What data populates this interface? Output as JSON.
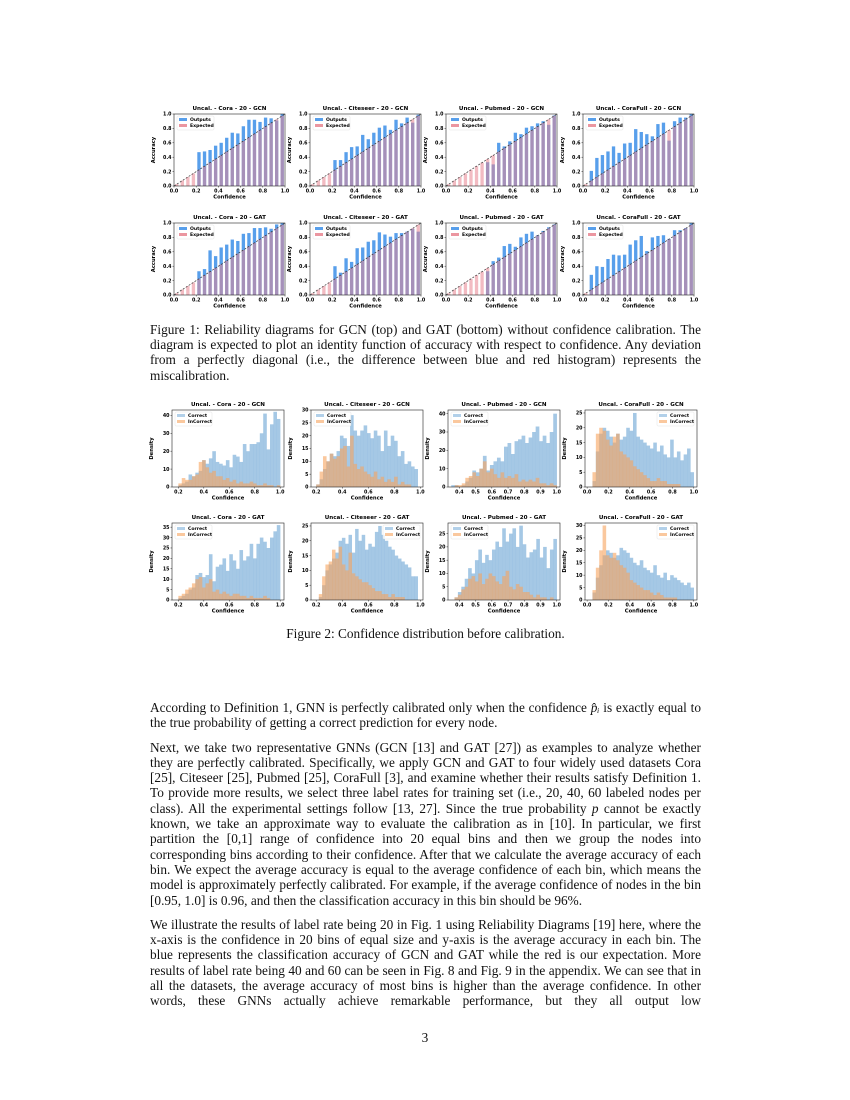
{
  "figure1": {
    "caption": "Figure 1: Reliability diagrams for GCN (top) and GAT (bottom) without confidence calibration. The diagram is expected to plot an identity function of accuracy with respect to confidence. Any deviation from a perfectly diagonal (i.e., the difference between blue and red histogram) represents the miscalibration.",
    "legend": [
      "Outputs",
      "Expected"
    ],
    "colors": {
      "outputs": "#3b8ee8",
      "expected": "#e8848f"
    }
  },
  "figure2": {
    "caption": "Figure 2: Confidence distribution before calibration.",
    "legend": [
      "Correct",
      "InCorrect"
    ],
    "colors": {
      "correct": "#7fb1da",
      "incorrect": "#f6a35e"
    }
  },
  "chart_data": [
    {
      "type": "bar",
      "title": "Uncal. - Cora - 20 - GCN",
      "xlabel": "Confidence",
      "ylabel": "Accuracy",
      "bins": 20,
      "xlim": [
        0,
        1
      ],
      "ylim": [
        0,
        1
      ],
      "xticks": [
        "0.0",
        "0.2",
        "0.4",
        "0.6",
        "0.8",
        "1.0"
      ],
      "yticks": [
        "0.0",
        "0.2",
        "0.4",
        "0.6",
        "0.8",
        "1.0"
      ],
      "first_bin": 4,
      "outputs": [
        0.47,
        0.48,
        0.5,
        0.56,
        0.6,
        0.67,
        0.74,
        0.73,
        0.83,
        0.92,
        0.92,
        0.89,
        0.95,
        0.94,
        0.91,
        1.0
      ],
      "expected": "bin center",
      "legend": "top-left"
    },
    {
      "type": "bar",
      "title": "Uncal. - Citeseer - 20 - GCN",
      "xlabel": "Confidence",
      "ylabel": "Accuracy",
      "bins": 20,
      "xlim": [
        0,
        1
      ],
      "ylim": [
        0,
        1
      ],
      "xticks": [
        "0.0",
        "0.2",
        "0.4",
        "0.6",
        "0.8",
        "1.0"
      ],
      "yticks": [
        "0.0",
        "0.2",
        "0.4",
        "0.6",
        "0.8",
        "1.0"
      ],
      "first_bin": 4,
      "outputs": [
        0.36,
        0.36,
        0.47,
        0.54,
        0.55,
        0.71,
        0.65,
        0.74,
        0.81,
        0.84,
        0.78,
        0.92,
        0.87,
        0.95,
        0.88,
        0.99
      ],
      "expected": "bin center",
      "legend": "top-left"
    },
    {
      "type": "bar",
      "title": "Uncal. - Pubmed - 20 - GCN",
      "xlabel": "Confidence",
      "ylabel": "Accuracy",
      "bins": 20,
      "xlim": [
        0,
        1
      ],
      "ylim": [
        0,
        1
      ],
      "xticks": [
        "0.0",
        "0.2",
        "0.4",
        "0.6",
        "0.8",
        "1.0"
      ],
      "yticks": [
        "0.0",
        "0.2",
        "0.4",
        "0.6",
        "0.8",
        "1.0"
      ],
      "first_bin": 7,
      "outputs": [
        0.33,
        0.3,
        0.6,
        0.55,
        0.62,
        0.74,
        0.72,
        0.81,
        0.83,
        0.87,
        0.9,
        0.85,
        0.98
      ],
      "expected": "bin center",
      "legend": "top-left"
    },
    {
      "type": "bar",
      "title": "Uncal. - CoraFull - 20 - GCN",
      "xlabel": "Confidence",
      "ylabel": "Accuracy",
      "bins": 20,
      "xlim": [
        0,
        1
      ],
      "ylim": [
        0,
        1
      ],
      "xticks": [
        "0.0",
        "0.2",
        "0.4",
        "0.6",
        "0.8",
        "1.0"
      ],
      "yticks": [
        "0.0",
        "0.2",
        "0.4",
        "0.6",
        "0.8",
        "1.0"
      ],
      "first_bin": 1,
      "outputs": [
        0.21,
        0.39,
        0.43,
        0.48,
        0.55,
        0.46,
        0.59,
        0.6,
        0.79,
        0.75,
        0.72,
        0.69,
        0.86,
        0.88,
        0.63,
        0.9,
        0.95,
        0.95,
        1.0
      ],
      "expected": "bin center",
      "legend": "top-left"
    },
    {
      "type": "bar",
      "title": "Uncal. - Cora - 20 - GAT",
      "xlabel": "Confidence",
      "ylabel": "Accuracy",
      "bins": 20,
      "xlim": [
        0,
        1
      ],
      "ylim": [
        0,
        1
      ],
      "xticks": [
        "0.0",
        "0.2",
        "0.4",
        "0.6",
        "0.8",
        "1.0"
      ],
      "yticks": [
        "0.0",
        "0.2",
        "0.4",
        "0.6",
        "0.8",
        "1.0"
      ],
      "first_bin": 4,
      "outputs": [
        0.33,
        0.36,
        0.62,
        0.54,
        0.66,
        0.7,
        0.77,
        0.75,
        0.85,
        0.86,
        0.93,
        0.93,
        0.94,
        0.92,
        0.98,
        1.0
      ],
      "expected": "bin center",
      "legend": "top-left"
    },
    {
      "type": "bar",
      "title": "Uncal. - Citeseer - 20 - GAT",
      "xlabel": "Confidence",
      "ylabel": "Accuracy",
      "bins": 20,
      "xlim": [
        0,
        1
      ],
      "ylim": [
        0,
        1
      ],
      "xticks": [
        "0.0",
        "0.2",
        "0.4",
        "0.6",
        "0.8",
        "1.0"
      ],
      "yticks": [
        "0.0",
        "0.2",
        "0.4",
        "0.6",
        "0.8",
        "1.0"
      ],
      "first_bin": 4,
      "outputs": [
        0.4,
        0.31,
        0.51,
        0.46,
        0.65,
        0.66,
        0.74,
        0.76,
        0.87,
        0.84,
        0.81,
        0.86,
        0.86,
        0.88,
        0.92,
        0.88
      ],
      "expected": "bin center",
      "legend": "top-left"
    },
    {
      "type": "bar",
      "title": "Uncal. - Pubmed - 20 - GAT",
      "xlabel": "Confidence",
      "ylabel": "Accuracy",
      "bins": 20,
      "xlim": [
        0,
        1
      ],
      "ylim": [
        0,
        1
      ],
      "xticks": [
        "0.0",
        "0.2",
        "0.4",
        "0.6",
        "0.8",
        "1.0"
      ],
      "yticks": [
        "0.0",
        "0.2",
        "0.4",
        "0.6",
        "0.8",
        "1.0"
      ],
      "first_bin": 7,
      "outputs": [
        0.33,
        0.47,
        0.52,
        0.68,
        0.71,
        0.67,
        0.8,
        0.85,
        0.88,
        0.83,
        0.89,
        0.94,
        0.98
      ],
      "expected": "bin center",
      "legend": "top-left"
    },
    {
      "type": "bar",
      "title": "Uncal. - CoraFull - 20 - GAT",
      "xlabel": "Confidence",
      "ylabel": "Accuracy",
      "bins": 20,
      "xlim": [
        0,
        1
      ],
      "ylim": [
        0,
        1
      ],
      "xticks": [
        "0.0",
        "0.2",
        "0.4",
        "0.6",
        "0.8",
        "1.0"
      ],
      "yticks": [
        "0.0",
        "0.2",
        "0.4",
        "0.6",
        "0.8",
        "1.0"
      ],
      "first_bin": 1,
      "outputs": [
        0.28,
        0.4,
        0.39,
        0.5,
        0.56,
        0.55,
        0.56,
        0.7,
        0.76,
        0.82,
        0.61,
        0.8,
        0.82,
        0.83,
        0.78,
        0.9,
        0.9,
        0.93,
        1.0
      ],
      "expected": "bin center",
      "legend": "top-left"
    },
    {
      "type": "histogram",
      "title": "Uncal. - Cora - 20 - GCN",
      "xlabel": "Confidence",
      "ylabel": "Density",
      "xlim": [
        0.15,
        1.03
      ],
      "ylim": [
        0,
        43
      ],
      "xticks": [
        0.2,
        0.4,
        0.6,
        0.8,
        1.0
      ],
      "yticks": [
        0,
        10,
        20,
        30,
        40
      ],
      "range": [
        0.2,
        1.0
      ],
      "legend": "top-left",
      "correct": [
        1,
        2,
        3,
        7,
        6,
        8,
        9,
        15,
        13,
        16,
        20,
        14,
        13,
        12,
        15,
        11,
        18,
        17,
        14,
        24,
        20,
        24,
        24,
        25,
        30,
        41,
        21,
        35,
        42,
        38
      ],
      "incorrect": [
        2,
        5,
        4,
        4,
        6,
        7,
        14,
        15,
        11,
        8,
        9,
        6,
        6,
        4,
        5,
        3,
        4,
        2,
        3,
        2,
        2,
        3,
        2,
        1,
        1,
        2,
        1,
        1,
        0,
        1
      ]
    },
    {
      "type": "histogram",
      "title": "Uncal. - Citeseer - 20 - GCN",
      "xlabel": "Confidence",
      "ylabel": "Density",
      "xlim": [
        0.16,
        1.02
      ],
      "ylim": [
        0,
        30
      ],
      "xticks": [
        0.2,
        0.4,
        0.6,
        0.8,
        1.0
      ],
      "yticks": [
        0,
        5,
        10,
        15,
        20,
        25,
        30
      ],
      "range": [
        0.2,
        0.98
      ],
      "legend": "top-left",
      "correct": [
        1,
        3,
        7,
        10,
        13,
        12,
        14,
        20,
        19,
        16,
        28,
        22,
        20,
        22,
        24,
        21,
        19,
        22,
        20,
        14,
        22,
        16,
        20,
        18,
        12,
        14,
        9,
        10,
        8,
        7
      ],
      "incorrect": [
        1,
        6,
        12,
        10,
        13,
        11,
        12,
        15,
        16,
        8,
        20,
        9,
        7,
        8,
        6,
        5,
        4,
        6,
        3,
        4,
        2,
        3,
        2,
        4,
        1,
        2,
        1,
        1,
        0,
        0
      ]
    },
    {
      "type": "histogram",
      "title": "Uncal. - Pubmed - 20 - GCN",
      "xlabel": "Confidence",
      "ylabel": "Density",
      "xlim": [
        0.33,
        1.02
      ],
      "ylim": [
        0,
        42
      ],
      "xticks": [
        0.4,
        0.5,
        0.6,
        0.7,
        0.8,
        0.9,
        1.0
      ],
      "yticks": [
        0,
        10,
        20,
        30,
        40
      ],
      "range": [
        0.35,
        1.0
      ],
      "legend": "top-left",
      "correct": [
        1,
        1,
        0,
        1,
        3,
        5,
        9,
        8,
        10,
        17,
        9,
        12,
        14,
        16,
        14,
        22,
        24,
        18,
        25,
        26,
        28,
        24,
        27,
        30,
        33,
        25,
        28,
        24,
        30,
        40
      ],
      "incorrect": [
        0,
        1,
        1,
        2,
        5,
        6,
        8,
        6,
        10,
        14,
        8,
        10,
        7,
        5,
        8,
        5,
        6,
        5,
        7,
        3,
        4,
        3,
        4,
        3,
        5,
        2,
        2,
        1,
        2,
        1
      ]
    },
    {
      "type": "histogram",
      "title": "Uncal. - CoraFull - 20 - GCN",
      "xlabel": "Confidence",
      "ylabel": "Density",
      "xlim": [
        -0.02,
        1.03
      ],
      "ylim": [
        0,
        26
      ],
      "xticks": [
        0.0,
        0.2,
        0.4,
        0.6,
        0.8,
        1.0
      ],
      "yticks": [
        0,
        5,
        10,
        15,
        20,
        25
      ],
      "range": [
        0.05,
        1.0
      ],
      "legend": "top-right",
      "correct": [
        2,
        12,
        18,
        20,
        19,
        17,
        15,
        18,
        16,
        17,
        20,
        19,
        25,
        17,
        16,
        15,
        14,
        13,
        15,
        12,
        14,
        11,
        10,
        16,
        10,
        12,
        9,
        11,
        13,
        5
      ],
      "incorrect": [
        5,
        18,
        20,
        19,
        16,
        14,
        17,
        18,
        12,
        11,
        10,
        9,
        7,
        6,
        5,
        4,
        3,
        2,
        2,
        3,
        2,
        2,
        1,
        1,
        1,
        1,
        0,
        0,
        0,
        0
      ]
    },
    {
      "type": "histogram",
      "title": "Uncal. - Cora - 20 - GAT",
      "xlabel": "Confidence",
      "ylabel": "Density",
      "xlim": [
        0.15,
        1.03
      ],
      "ylim": [
        0,
        37
      ],
      "xticks": [
        0.2,
        0.4,
        0.6,
        0.8,
        1.0
      ],
      "yticks": [
        0,
        5,
        10,
        15,
        20,
        25,
        30,
        35
      ],
      "range": [
        0.2,
        1.0
      ],
      "legend": "top-left",
      "correct": [
        1,
        2,
        3,
        5,
        6,
        12,
        13,
        11,
        12,
        22,
        9,
        16,
        17,
        20,
        14,
        22,
        19,
        15,
        24,
        19,
        21,
        27,
        20,
        27,
        30,
        28,
        25,
        30,
        33,
        36
      ],
      "incorrect": [
        2,
        3,
        5,
        6,
        8,
        10,
        11,
        6,
        8,
        10,
        4,
        5,
        3,
        4,
        3,
        2,
        3,
        3,
        2,
        2,
        1,
        2,
        1,
        1,
        1,
        2,
        1,
        0,
        0,
        0
      ]
    },
    {
      "type": "histogram",
      "title": "Uncal. - Citeseer - 20 - GAT",
      "xlabel": "Confidence",
      "ylabel": "Density",
      "xlim": [
        0.16,
        1.02
      ],
      "ylim": [
        0,
        26
      ],
      "xticks": [
        0.2,
        0.4,
        0.6,
        0.8,
        1.0
      ],
      "yticks": [
        0,
        5,
        10,
        15,
        20,
        25
      ],
      "range": [
        0.22,
        0.98
      ],
      "legend": "top-right",
      "correct": [
        1,
        5,
        10,
        12,
        14,
        16,
        20,
        21,
        19,
        22,
        16,
        24,
        20,
        22,
        17,
        19,
        18,
        23,
        25,
        22,
        20,
        18,
        17,
        15,
        14,
        13,
        12,
        11,
        8,
        8
      ],
      "incorrect": [
        2,
        8,
        12,
        13,
        17,
        14,
        18,
        12,
        10,
        16,
        9,
        8,
        7,
        6,
        6,
        5,
        4,
        3,
        3,
        2,
        2,
        1,
        2,
        1,
        1,
        1,
        0,
        0,
        0,
        0
      ]
    },
    {
      "type": "histogram",
      "title": "Uncal. - Pubmed - 20 - GAT",
      "xlabel": "Confidence",
      "ylabel": "Density",
      "xlim": [
        0.33,
        1.02
      ],
      "ylim": [
        0,
        29
      ],
      "xticks": [
        0.4,
        0.5,
        0.6,
        0.7,
        0.8,
        0.9,
        1.0
      ],
      "yticks": [
        0,
        5,
        10,
        15,
        20,
        25
      ],
      "range": [
        0.37,
        1.0
      ],
      "legend": "top-left",
      "correct": [
        1,
        3,
        5,
        8,
        12,
        10,
        15,
        19,
        14,
        17,
        15,
        19,
        22,
        20,
        27,
        22,
        25,
        27,
        20,
        28,
        21,
        16,
        18,
        19,
        23,
        16,
        20,
        12,
        19,
        23
      ],
      "incorrect": [
        1,
        2,
        4,
        5,
        8,
        9,
        7,
        10,
        6,
        8,
        10,
        9,
        7,
        6,
        9,
        11,
        5,
        4,
        6,
        5,
        3,
        3,
        2,
        1,
        2,
        1,
        1,
        0,
        1,
        0
      ]
    },
    {
      "type": "histogram",
      "title": "Uncal. - CoraFull - 20 - GAT",
      "xlabel": "Confidence",
      "ylabel": "Density",
      "xlim": [
        -0.02,
        1.03
      ],
      "ylim": [
        0,
        31
      ],
      "xticks": [
        0.0,
        0.2,
        0.4,
        0.6,
        0.8,
        1.0
      ],
      "yticks": [
        0,
        5,
        10,
        15,
        20,
        25,
        30
      ],
      "range": [
        0.05,
        1.0
      ],
      "legend": "top-right",
      "correct": [
        3,
        9,
        14,
        18,
        20,
        19,
        17,
        18,
        21,
        20,
        19,
        17,
        15,
        14,
        16,
        13,
        12,
        11,
        14,
        10,
        9,
        11,
        8,
        10,
        9,
        8,
        7,
        6,
        7,
        5
      ],
      "incorrect": [
        4,
        13,
        20,
        30,
        18,
        17,
        19,
        16,
        14,
        13,
        11,
        8,
        7,
        6,
        5,
        4,
        4,
        3,
        2,
        3,
        2,
        1,
        1,
        1,
        1,
        0,
        0,
        0,
        0,
        0
      ]
    }
  ],
  "body": {
    "p1": {
      "before": "According to Definition 1, GNN is perfectly calibrated only when the confidence ",
      "math": "p̂ᵢ",
      "after": " is exactly equal to the true probability of getting a correct prediction for every node."
    },
    "p2": {
      "before": "Next, we take two representative GNNs (GCN [13] and GAT [27]) as examples to analyze whether they are perfectly calibrated. Specifically, we apply GCN and GAT to four widely used datasets Cora [25], Citeseer [25], Pubmed [25], CoraFull [3], and examine whether their results satisfy Definition 1. To provide more results, we select three label rates for training set (i.e., 20, 40, 60 labeled nodes per class). All the experimental settings follow [13, 27]. Since the true probability ",
      "math": "p",
      "after": " cannot be exactly known, we take an approximate way to evaluate the calibration as in [10]. In particular, we first partition the [0,1] range of confidence into 20 equal bins and then we group the nodes into corresponding bins according to their confidence. After that we calculate the average accuracy of each bin. We expect the average accuracy is equal to the average confidence of each bin, which means the model is approximately perfectly calibrated. For example, if the average confidence of nodes in the bin [0.95, 1.0] is 0.96, and then the classification accuracy in this bin should be 96%."
    },
    "p3": "We illustrate the results of label rate being 20 in Fig. 1 using Reliability Diagrams [19] here, where the x-axis is the confidence in 20 bins of equal size and y-axis is the average accuracy in each bin. The blue represents the classification accuracy of GCN and GAT while the red is our expectation. More results of label rate being 40 and 60 can be seen in Fig. 8 and Fig. 9 in the appendix. We can see that in all the datasets, the average accuracy of most bins is higher than the average confidence. In other words, these GNNs actually achieve remarkable performance, but they all output low"
  },
  "page_number": "3"
}
